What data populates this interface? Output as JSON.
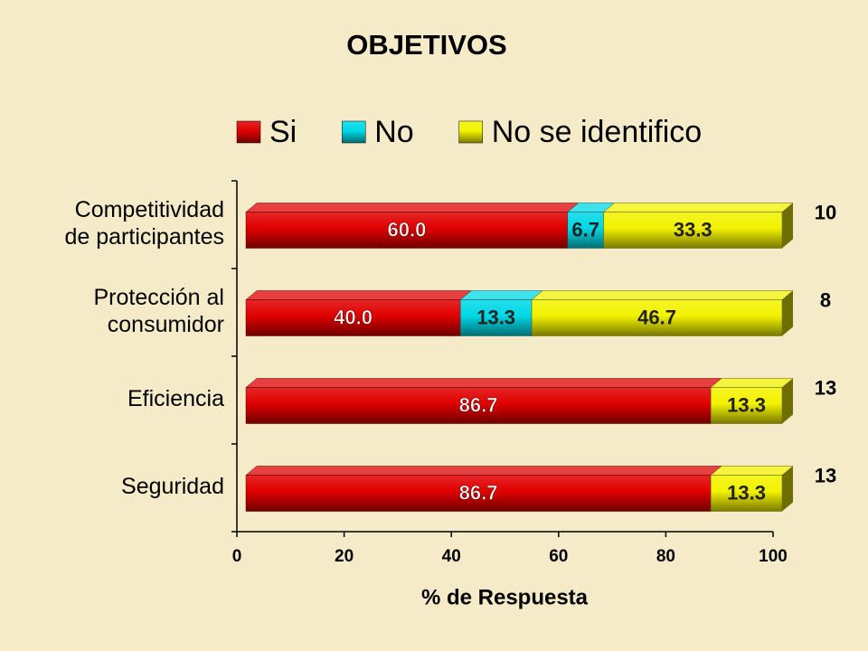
{
  "chart_data": {
    "type": "bar",
    "orientation": "horizontal",
    "stacked": true,
    "title": "OBJETIVOS",
    "xlabel": "% de Respuesta",
    "categories": [
      [
        "Competitividad",
        "de participantes"
      ],
      [
        "Protección al",
        "consumidor"
      ],
      [
        "Eficiencia"
      ],
      [
        "Seguridad"
      ]
    ],
    "series": [
      {
        "name": "Si",
        "color": "#e00000",
        "values": [
          60.0,
          40.0,
          86.7,
          86.7
        ],
        "value_labels": [
          "60.0",
          "40.0",
          "86.7",
          "86.7"
        ]
      },
      {
        "name": "No",
        "color": "#00d8e6",
        "values": [
          6.7,
          13.3,
          null,
          null
        ],
        "value_labels": [
          "6.7",
          "13.3",
          null,
          null
        ]
      },
      {
        "name": "No se identifico",
        "color": "#f2f200",
        "values": [
          33.3,
          46.7,
          13.3,
          13.3
        ],
        "value_labels": [
          "33.3",
          "46.7",
          "13.3",
          "13.3"
        ]
      }
    ],
    "counts": [
      10,
      8,
      13,
      13
    ],
    "xlim": [
      0,
      100
    ],
    "xticks": [
      0,
      20,
      40,
      60,
      80,
      100
    ]
  }
}
